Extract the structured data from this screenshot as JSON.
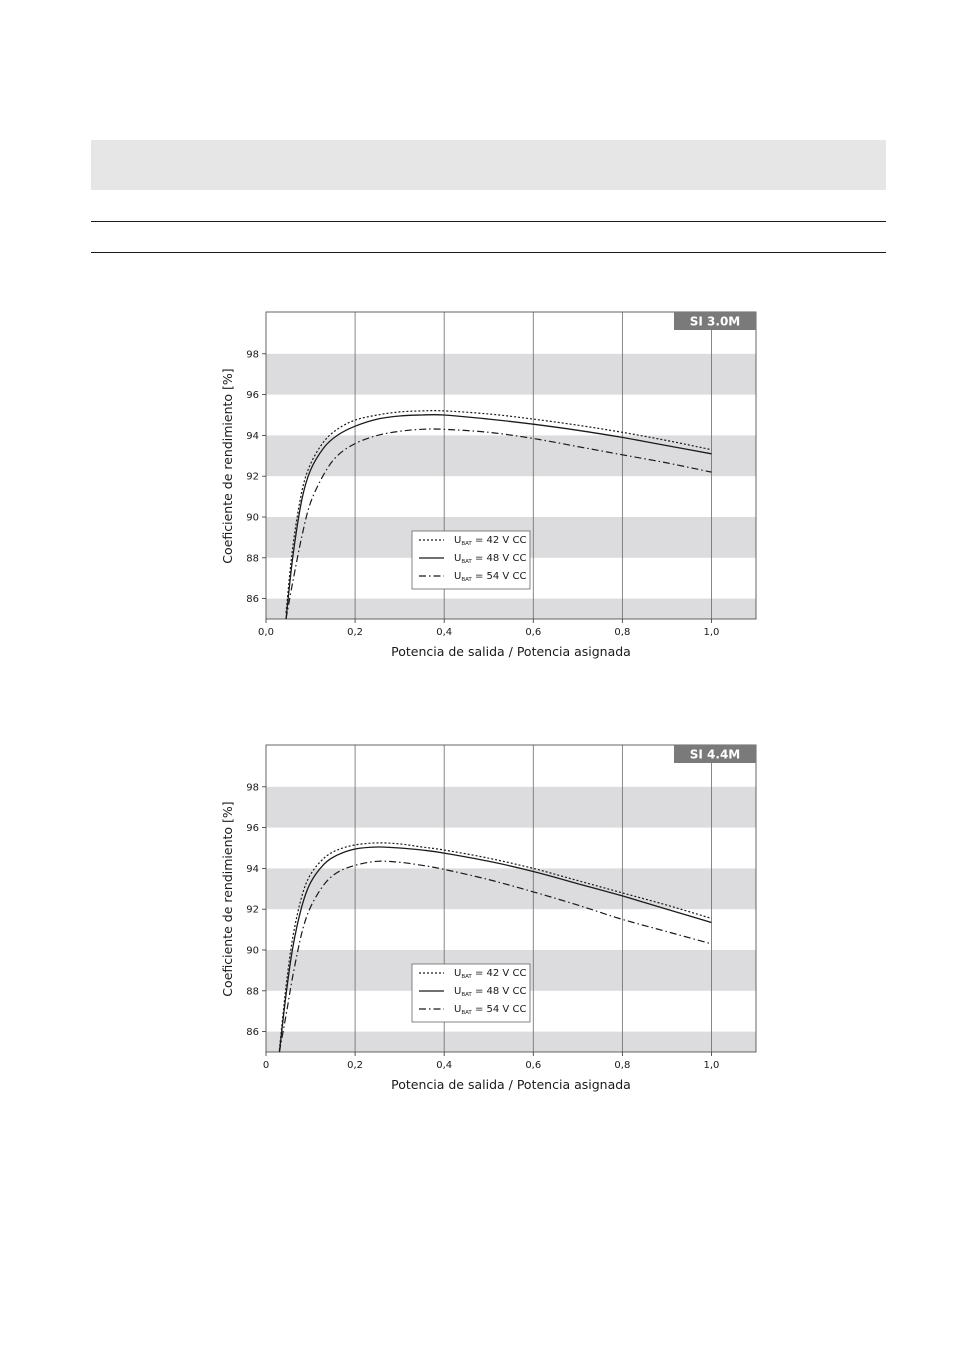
{
  "chart_data": [
    {
      "type": "line",
      "badge": "SI 3.0M",
      "xlabel": "Potencia de salida / Potencia asignada",
      "ylabel": "Coeficiente de rendimiento [%]",
      "xlim": [
        0,
        1.1
      ],
      "ylim": [
        85,
        100
      ],
      "x_ticks": [
        0,
        0.2,
        0.4,
        0.6,
        0.8,
        1.0
      ],
      "x_tick_labels": [
        "0,0",
        "0,2",
        "0,4",
        "0,6",
        "0,8",
        "1,0"
      ],
      "y_ticks": [
        86,
        88,
        90,
        92,
        94,
        96,
        98
      ],
      "y_tick_labels": [
        "86",
        "88",
        "90",
        "92",
        "94",
        "96",
        "98"
      ],
      "grid": "vertical lines + alternating horizontal bands",
      "legend_position": "lower-center",
      "x": [
        0.045,
        0.06,
        0.08,
        0.1,
        0.13,
        0.16,
        0.2,
        0.25,
        0.3,
        0.35,
        0.4,
        0.5,
        0.6,
        0.7,
        0.8,
        0.9,
        1.0
      ],
      "series": [
        {
          "legend_main": "U",
          "legend_sub": "BAT",
          "legend_rest": " = 42 V CC",
          "dash": "2,2",
          "values": [
            85.3,
            88.5,
            91.2,
            92.6,
            93.7,
            94.3,
            94.75,
            95.0,
            95.15,
            95.2,
            95.2,
            95.05,
            94.8,
            94.5,
            94.15,
            93.75,
            93.3
          ]
        },
        {
          "legend_main": "U",
          "legend_sub": "BAT",
          "legend_rest": " = 48 V CC",
          "dash": "",
          "values": [
            85.0,
            88.0,
            90.8,
            92.3,
            93.4,
            94.0,
            94.45,
            94.8,
            94.95,
            95.0,
            95.0,
            94.8,
            94.55,
            94.25,
            93.9,
            93.5,
            93.1
          ]
        },
        {
          "legend_main": "U",
          "legend_sub": "BAT",
          "legend_rest": " = 54 V CC",
          "dash": "7,3,1.5,3",
          "values": [
            85.0,
            86.8,
            89.0,
            90.7,
            92.1,
            93.0,
            93.6,
            94.0,
            94.2,
            94.3,
            94.3,
            94.15,
            93.85,
            93.45,
            93.05,
            92.65,
            92.2
          ]
        }
      ]
    },
    {
      "type": "line",
      "badge": "SI 4.4M",
      "xlabel": "Potencia de salida / Potencia asignada",
      "ylabel": "Coeficiente de rendimiento [%]",
      "xlim": [
        0,
        1.1
      ],
      "ylim": [
        85,
        100
      ],
      "x_ticks": [
        0,
        0.2,
        0.4,
        0.6,
        0.8,
        1.0
      ],
      "x_tick_labels": [
        "0",
        "0,2",
        "0,4",
        "0,6",
        "0,8",
        "1,0"
      ],
      "y_ticks": [
        86,
        88,
        90,
        92,
        94,
        96,
        98
      ],
      "y_tick_labels": [
        "86",
        "88",
        "90",
        "92",
        "94",
        "96",
        "98"
      ],
      "grid": "vertical lines + alternating horizontal bands",
      "legend_position": "lower-center",
      "x": [
        0.03,
        0.045,
        0.06,
        0.08,
        0.1,
        0.13,
        0.16,
        0.2,
        0.25,
        0.3,
        0.35,
        0.4,
        0.5,
        0.6,
        0.7,
        0.8,
        0.9,
        1.0
      ],
      "series": [
        {
          "legend_main": "U",
          "legend_sub": "BAT",
          "legend_rest": " = 42 V CC",
          "dash": "2,2",
          "values": [
            85.1,
            88.2,
            90.6,
            92.6,
            93.7,
            94.5,
            94.9,
            95.15,
            95.25,
            95.2,
            95.05,
            94.9,
            94.5,
            94.0,
            93.4,
            92.8,
            92.2,
            91.55
          ]
        },
        {
          "legend_main": "U",
          "legend_sub": "BAT",
          "legend_rest": " = 48 V CC",
          "dash": "",
          "values": [
            85.0,
            87.8,
            90.1,
            92.1,
            93.3,
            94.2,
            94.65,
            94.95,
            95.05,
            95.0,
            94.9,
            94.75,
            94.35,
            93.85,
            93.25,
            92.65,
            92.0,
            91.35
          ]
        },
        {
          "legend_main": "U",
          "legend_sub": "BAT",
          "legend_rest": " = 54 V CC",
          "dash": "7,3,1.5,3",
          "values": [
            85.0,
            86.8,
            88.7,
            90.8,
            92.1,
            93.2,
            93.8,
            94.15,
            94.35,
            94.3,
            94.15,
            93.95,
            93.45,
            92.85,
            92.2,
            91.5,
            90.9,
            90.3
          ]
        }
      ]
    }
  ]
}
